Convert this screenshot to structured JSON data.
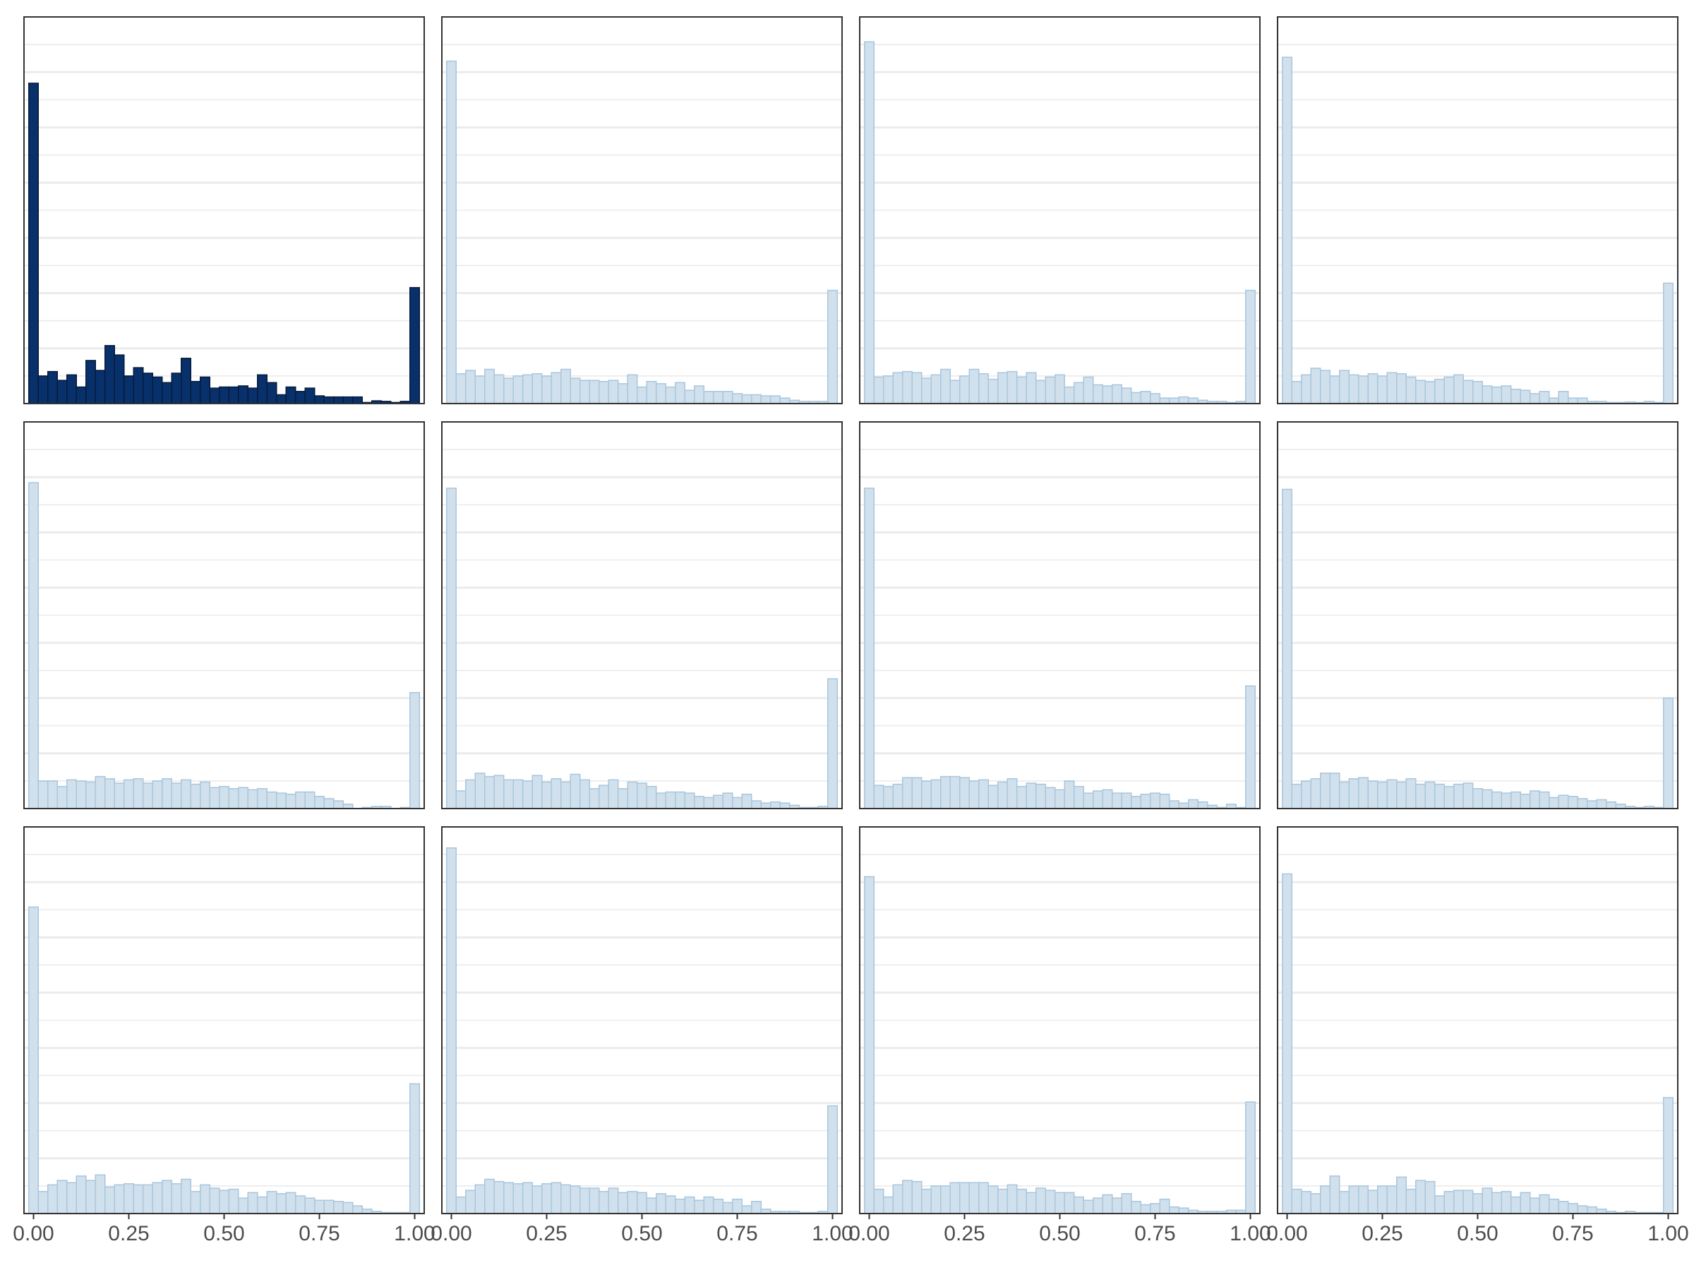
{
  "colors": {
    "observed_fill": "#08306b",
    "observed_stroke": "#061a3a",
    "replicate_fill": "#d0e0ec",
    "replicate_stroke": "#a9c6dd",
    "panel_border": "#333333",
    "grid_major": "#ebebeb",
    "axis_text": "#4d4d4d"
  },
  "chart_data": {
    "type": "bar",
    "layout": "grid of 12 histograms, 3 rows x 4 columns",
    "shared_y_scale": false,
    "grid": "horizontal gridlines only",
    "x_tick_values": [
      0,
      0.25,
      0.5,
      0.75,
      1.0
    ],
    "x_tick_labels": [
      "0.00",
      "0.25",
      "0.50",
      "0.75",
      "1.00"
    ],
    "xlim": [
      -0.025,
      1.025
    ],
    "bin_width": 0.025,
    "bin_centers": [
      0,
      0.025,
      0.05,
      0.075,
      0.1,
      0.125,
      0.15,
      0.175,
      0.2,
      0.225,
      0.25,
      0.275,
      0.3,
      0.325,
      0.35,
      0.375,
      0.4,
      0.425,
      0.45,
      0.475,
      0.5,
      0.525,
      0.55,
      0.575,
      0.6,
      0.625,
      0.65,
      0.675,
      0.7,
      0.725,
      0.75,
      0.775,
      0.8,
      0.825,
      0.85,
      0.875,
      0.9,
      0.925,
      0.95,
      0.975,
      1.0
    ],
    "panels": [
      {
        "style": "observed",
        "ylim": [
          0,
          700
        ],
        "values": [
          580,
          50,
          58,
          42,
          52,
          30,
          78,
          60,
          105,
          88,
          50,
          65,
          55,
          48,
          38,
          55,
          82,
          40,
          48,
          28,
          30,
          30,
          32,
          28,
          52,
          38,
          16,
          30,
          22,
          28,
          14,
          12,
          12,
          12,
          12,
          2,
          5,
          4,
          2,
          4,
          210
        ]
      },
      {
        "style": "replicate",
        "ylim": [
          0,
          700
        ],
        "values": [
          620,
          54,
          60,
          50,
          62,
          52,
          46,
          50,
          52,
          54,
          50,
          56,
          62,
          46,
          42,
          42,
          40,
          42,
          36,
          52,
          30,
          40,
          36,
          30,
          38,
          24,
          32,
          22,
          22,
          22,
          18,
          16,
          16,
          14,
          14,
          10,
          6,
          4,
          4,
          4,
          205
        ]
      },
      {
        "style": "replicate",
        "ylim": [
          0,
          700
        ],
        "values": [
          655,
          48,
          50,
          56,
          58,
          56,
          46,
          52,
          62,
          42,
          50,
          62,
          54,
          44,
          56,
          58,
          48,
          56,
          42,
          48,
          52,
          30,
          38,
          48,
          34,
          32,
          34,
          28,
          20,
          22,
          18,
          10,
          10,
          12,
          10,
          6,
          4,
          4,
          2,
          4,
          205
        ]
      },
      {
        "style": "replicate",
        "ylim": [
          0,
          700
        ],
        "values": [
          627,
          40,
          52,
          64,
          60,
          50,
          60,
          52,
          50,
          54,
          50,
          56,
          54,
          48,
          42,
          40,
          44,
          48,
          52,
          42,
          40,
          32,
          30,
          32,
          26,
          24,
          18,
          22,
          10,
          22,
          10,
          10,
          4,
          4,
          2,
          2,
          3,
          2,
          4,
          2,
          218
        ]
      },
      {
        "style": "replicate",
        "ylim": [
          0,
          700
        ],
        "values": [
          590,
          50,
          50,
          40,
          52,
          50,
          48,
          58,
          54,
          46,
          52,
          54,
          46,
          50,
          54,
          46,
          52,
          44,
          48,
          38,
          40,
          36,
          38,
          34,
          36,
          30,
          28,
          26,
          30,
          30,
          22,
          18,
          14,
          8,
          0,
          2,
          4,
          4,
          0,
          2,
          210
        ]
      },
      {
        "style": "replicate",
        "ylim": [
          0,
          700
        ],
        "values": [
          580,
          32,
          52,
          64,
          58,
          60,
          52,
          52,
          50,
          60,
          48,
          54,
          48,
          62,
          52,
          36,
          42,
          52,
          36,
          48,
          46,
          40,
          28,
          30,
          30,
          28,
          22,
          20,
          24,
          28,
          20,
          26,
          14,
          10,
          12,
          10,
          6,
          2,
          2,
          4,
          235
        ]
      },
      {
        "style": "replicate",
        "ylim": [
          0,
          700
        ],
        "values": [
          580,
          42,
          40,
          44,
          56,
          56,
          50,
          52,
          58,
          58,
          56,
          50,
          52,
          42,
          48,
          54,
          40,
          46,
          44,
          38,
          34,
          50,
          40,
          28,
          32,
          34,
          28,
          28,
          22,
          26,
          28,
          26,
          14,
          10,
          16,
          12,
          6,
          2,
          8,
          2,
          222
        ]
      },
      {
        "style": "replicate",
        "ylim": [
          0,
          700
        ],
        "values": [
          578,
          44,
          50,
          54,
          64,
          64,
          48,
          54,
          56,
          50,
          48,
          52,
          48,
          54,
          44,
          48,
          44,
          40,
          44,
          46,
          36,
          34,
          30,
          28,
          30,
          26,
          32,
          30,
          20,
          24,
          22,
          18,
          14,
          16,
          12,
          8,
          4,
          2,
          4,
          2,
          200
        ]
      },
      {
        "style": "replicate",
        "ylim": [
          0,
          700
        ],
        "values": [
          555,
          40,
          52,
          60,
          56,
          68,
          60,
          70,
          48,
          52,
          54,
          52,
          52,
          56,
          60,
          54,
          62,
          40,
          52,
          46,
          42,
          44,
          28,
          38,
          30,
          40,
          36,
          38,
          32,
          28,
          24,
          24,
          22,
          20,
          14,
          8,
          4,
          2,
          2,
          2,
          235
        ]
      },
      {
        "style": "replicate",
        "ylim": [
          0,
          700
        ],
        "values": [
          662,
          30,
          42,
          52,
          62,
          58,
          56,
          54,
          56,
          50,
          54,
          56,
          52,
          50,
          46,
          46,
          40,
          46,
          38,
          40,
          38,
          28,
          36,
          32,
          26,
          30,
          24,
          30,
          26,
          20,
          26,
          14,
          22,
          8,
          4,
          4,
          4,
          2,
          2,
          4,
          195
        ]
      },
      {
        "style": "replicate",
        "ylim": [
          0,
          700
        ],
        "values": [
          610,
          44,
          30,
          52,
          60,
          58,
          44,
          50,
          50,
          56,
          56,
          56,
          56,
          50,
          44,
          52,
          44,
          38,
          46,
          42,
          38,
          38,
          30,
          24,
          28,
          34,
          28,
          36,
          22,
          16,
          18,
          26,
          12,
          10,
          6,
          4,
          4,
          4,
          6,
          6,
          202
        ]
      },
      {
        "style": "replicate",
        "ylim": [
          0,
          700
        ],
        "values": [
          615,
          44,
          40,
          36,
          50,
          68,
          40,
          50,
          50,
          42,
          50,
          50,
          66,
          44,
          60,
          58,
          32,
          40,
          42,
          42,
          36,
          46,
          38,
          40,
          30,
          38,
          28,
          34,
          26,
          22,
          18,
          14,
          12,
          8,
          4,
          2,
          4,
          2,
          2,
          2,
          210
        ]
      }
    ]
  }
}
